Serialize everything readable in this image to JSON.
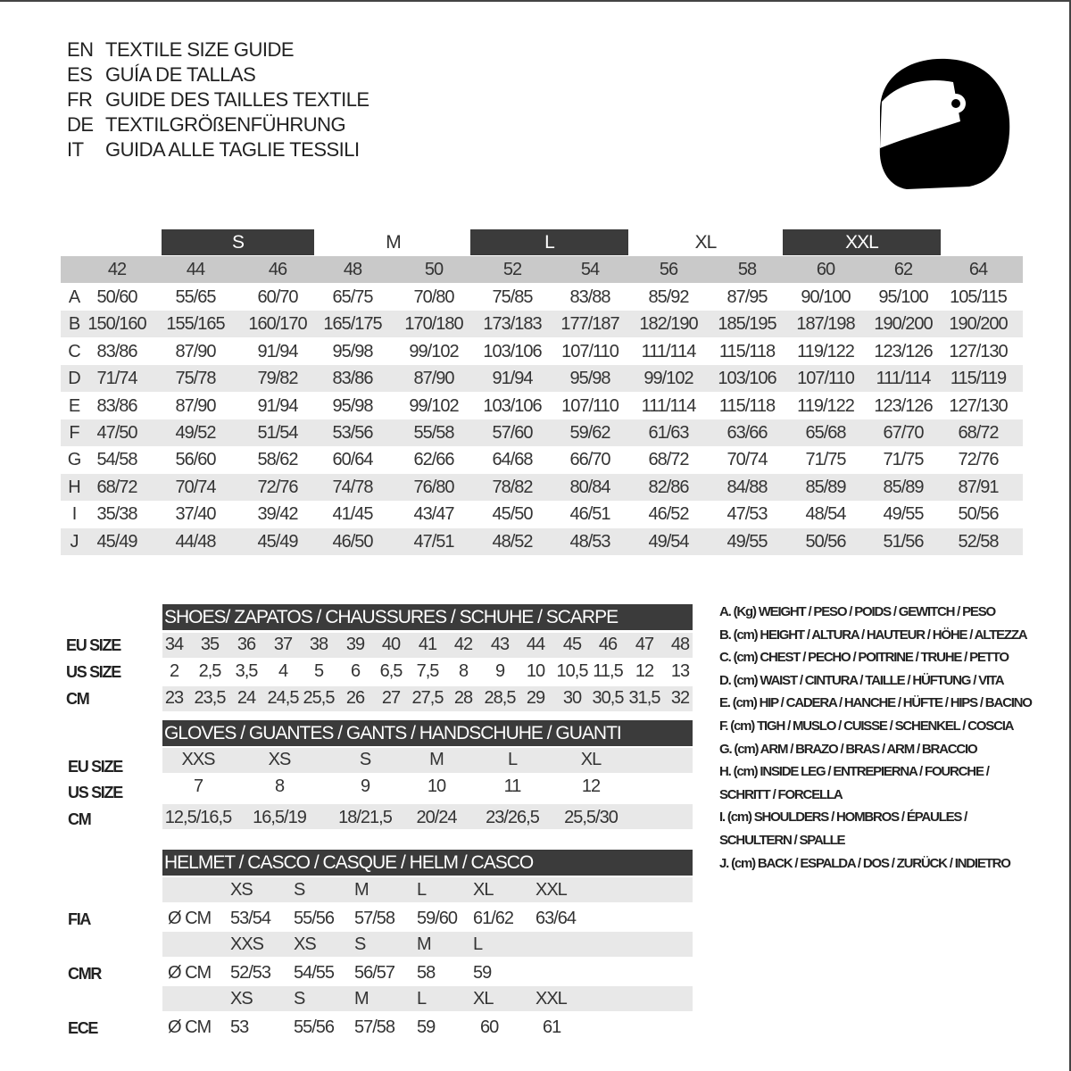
{
  "titles": [
    {
      "code": "EN",
      "text": "TEXTILE SIZE GUIDE"
    },
    {
      "code": "ES",
      "text": "GUÍA DE TALLAS"
    },
    {
      "code": "FR",
      "text": "GUIDE DES TAILLES TEXTILE"
    },
    {
      "code": "DE",
      "text": "TEXTILGRÖßENFÜHRUNG"
    },
    {
      "code": "IT",
      "text": "GUIDA ALLE TAGLIE TESSILI"
    }
  ],
  "logo_icon": "helmet-icon",
  "textile": {
    "size_groups": [
      "S",
      "M",
      "L",
      "XL",
      "XXL"
    ],
    "sizes": [
      "42",
      "44",
      "46",
      "48",
      "50",
      "52",
      "54",
      "56",
      "58",
      "60",
      "62",
      "64"
    ],
    "rows": [
      {
        "label": "A",
        "values": [
          "50/60",
          "55/65",
          "60/70",
          "65/75",
          "70/80",
          "75/85",
          "83/88",
          "85/92",
          "87/95",
          "90/100",
          "95/100",
          "105/115"
        ]
      },
      {
        "label": "B",
        "values": [
          "150/160",
          "155/165",
          "160/170",
          "165/175",
          "170/180",
          "173/183",
          "177/187",
          "182/190",
          "185/195",
          "187/198",
          "190/200",
          "190/200"
        ]
      },
      {
        "label": "C",
        "values": [
          "83/86",
          "87/90",
          "91/94",
          "95/98",
          "99/102",
          "103/106",
          "107/110",
          "111/114",
          "115/118",
          "119/122",
          "123/126",
          "127/130"
        ]
      },
      {
        "label": "D",
        "values": [
          "71/74",
          "75/78",
          "79/82",
          "83/86",
          "87/90",
          "91/94",
          "95/98",
          "99/102",
          "103/106",
          "107/110",
          "111/114",
          "115/119"
        ]
      },
      {
        "label": "E",
        "values": [
          "83/86",
          "87/90",
          "91/94",
          "95/98",
          "99/102",
          "103/106",
          "107/110",
          "111/114",
          "115/118",
          "119/122",
          "123/126",
          "127/130"
        ]
      },
      {
        "label": "F",
        "values": [
          "47/50",
          "49/52",
          "51/54",
          "53/56",
          "55/58",
          "57/60",
          "59/62",
          "61/63",
          "63/66",
          "65/68",
          "67/70",
          "68/72"
        ]
      },
      {
        "label": "G",
        "values": [
          "54/58",
          "56/60",
          "58/62",
          "60/64",
          "62/66",
          "64/68",
          "66/70",
          "68/72",
          "70/74",
          "71/75",
          "71/75",
          "72/76"
        ]
      },
      {
        "label": "H",
        "values": [
          "68/72",
          "70/74",
          "72/76",
          "74/78",
          "76/80",
          "78/82",
          "80/84",
          "82/86",
          "84/88",
          "85/89",
          "85/89",
          "87/91"
        ]
      },
      {
        "label": "I",
        "values": [
          "35/38",
          "37/40",
          "39/42",
          "41/45",
          "43/47",
          "45/50",
          "46/51",
          "46/52",
          "47/53",
          "48/54",
          "49/55",
          "50/56"
        ]
      },
      {
        "label": "J",
        "values": [
          "45/49",
          "44/48",
          "45/49",
          "46/50",
          "47/51",
          "48/52",
          "48/53",
          "49/54",
          "49/55",
          "50/56",
          "51/56",
          "52/58"
        ]
      }
    ]
  },
  "shoes": {
    "title": "SHOES/ ZAPATOS / CHAUSSURES / SCHUHE / SCARPE",
    "rows": [
      {
        "label": "EU SIZE",
        "values": [
          "34",
          "35",
          "36",
          "37",
          "38",
          "39",
          "40",
          "41",
          "42",
          "43",
          "44",
          "45",
          "46",
          "47",
          "48"
        ]
      },
      {
        "label": "US SIZE",
        "values": [
          "2",
          "2,5",
          "3,5",
          "4",
          "5",
          "6",
          "6,5",
          "7,5",
          "8",
          "9",
          "10",
          "10,5",
          "11,5",
          "12",
          "13"
        ]
      },
      {
        "label": "CM",
        "values": [
          "23",
          "23,5",
          "24",
          "24,5",
          "25,5",
          "26",
          "27",
          "27,5",
          "28",
          "28,5",
          "29",
          "30",
          "30,5",
          "31,5",
          "32"
        ]
      }
    ]
  },
  "gloves": {
    "title": "GLOVES / GUANTES / GANTS / HANDSCHUHE / GUANTI",
    "rows": [
      {
        "label": "EU SIZE",
        "values": [
          "XXS",
          "XS",
          "S",
          "M",
          "L",
          "XL"
        ]
      },
      {
        "label": "US SIZE",
        "values": [
          "7",
          "8",
          "9",
          "10",
          "11",
          "12"
        ]
      },
      {
        "label": "CM",
        "values": [
          "12,5/16,5",
          "16,5/19",
          "18/21,5",
          "20/24",
          "23/26,5",
          "25,5/30"
        ]
      }
    ]
  },
  "helmet": {
    "title": "HELMET / CASCO / CASQUE / HELM / CASCO",
    "groups": [
      {
        "label": "FIA",
        "unit": "Ø CM",
        "sizes": [
          "XS",
          "S",
          "M",
          "L",
          "XL",
          "XXL"
        ],
        "values": [
          "53/54",
          "55/56",
          "57/58",
          "59/60",
          "61/62",
          "63/64"
        ]
      },
      {
        "label": "CMR",
        "unit": "Ø CM",
        "sizes": [
          "XXS",
          "XS",
          "S",
          "M",
          "L"
        ],
        "values": [
          "52/53",
          "54/55",
          "56/57",
          "58",
          "59"
        ]
      },
      {
        "label": "ECE",
        "unit": "Ø CM",
        "sizes": [
          "XS",
          "S",
          "M",
          "L",
          "XL",
          "XXL"
        ],
        "values": [
          "53",
          "55/56",
          "57/58",
          "59",
          "60",
          "61"
        ]
      }
    ]
  },
  "legend": [
    "A. (Kg) WEIGHT / PESO / POIDS / GEWITCH / PESO",
    "B. (cm) HEIGHT / ALTURA / HAUTEUR / HÖHE / ALTEZZA",
    "C. (cm) CHEST / PECHO / POITRINE / TRUHE / PETTO",
    "D. (cm) WAIST / CINTURA / TAILLE / HÜFTUNG / VITA",
    "E. (cm) HIP / CADERA / HANCHE / HÜFTE / HIPS /  BACINO",
    "F.  (cm) TIGH / MUSLO / CUISSE / SCHENKEL / COSCIA",
    "G. (cm) ARM  / BRAZO / BRAS / ARM / BRACCIO",
    "H. (cm) INSIDE LEG / ENTREPIERNA / FOURCHE /",
    "SCHRITT / FORCELLA",
    "I.  (cm) SHOULDERS / HOMBROS / ÉPAULES /",
    "SCHULTERN / SPALLE",
    "J. (cm) BACK / ESPALDA / DOS / ZURÜCK / INDIETRO"
  ]
}
